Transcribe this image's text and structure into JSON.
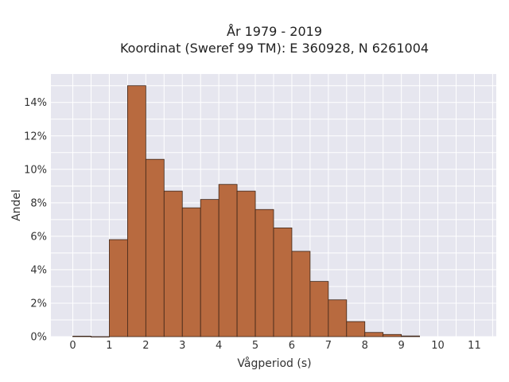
{
  "chart_data": {
    "type": "bar",
    "title": "År 1979 - 2019",
    "subtitle": "Koordinat (Sweref 99 TM): E 360928, N 6261004",
    "xlabel": "Vågperiod (s)",
    "ylabel": "Andel",
    "xlim": [
      -0.6,
      11.6
    ],
    "ylim": [
      0,
      0.157
    ],
    "x_ticks": [
      0,
      1,
      2,
      3,
      4,
      5,
      6,
      7,
      8,
      9,
      10,
      11
    ],
    "y_ticks": [
      0,
      0.02,
      0.04,
      0.06,
      0.08,
      0.1,
      0.12,
      0.14
    ],
    "y_tick_labels": [
      "0%",
      "2%",
      "4%",
      "6%",
      "8%",
      "10%",
      "12%",
      "14%"
    ],
    "bin_width": 0.5,
    "bins": [
      {
        "start": 0.0,
        "value": 0.0003
      },
      {
        "start": 0.5,
        "value": 0.0
      },
      {
        "start": 1.0,
        "value": 0.058
      },
      {
        "start": 1.5,
        "value": 0.15
      },
      {
        "start": 2.0,
        "value": 0.106
      },
      {
        "start": 2.5,
        "value": 0.087
      },
      {
        "start": 3.0,
        "value": 0.077
      },
      {
        "start": 3.5,
        "value": 0.082
      },
      {
        "start": 4.0,
        "value": 0.091
      },
      {
        "start": 4.5,
        "value": 0.087
      },
      {
        "start": 5.0,
        "value": 0.076
      },
      {
        "start": 5.5,
        "value": 0.065
      },
      {
        "start": 6.0,
        "value": 0.051
      },
      {
        "start": 6.5,
        "value": 0.033
      },
      {
        "start": 7.0,
        "value": 0.022
      },
      {
        "start": 7.5,
        "value": 0.009
      },
      {
        "start": 8.0,
        "value": 0.0025
      },
      {
        "start": 8.5,
        "value": 0.0013
      },
      {
        "start": 9.0,
        "value": 0.0004
      }
    ],
    "grid": true,
    "colors": {
      "bar_fill": "#b86a3f",
      "bar_edge": "#3d2518",
      "plot_bg": "#e6e6ef",
      "grid": "#ffffff"
    }
  }
}
